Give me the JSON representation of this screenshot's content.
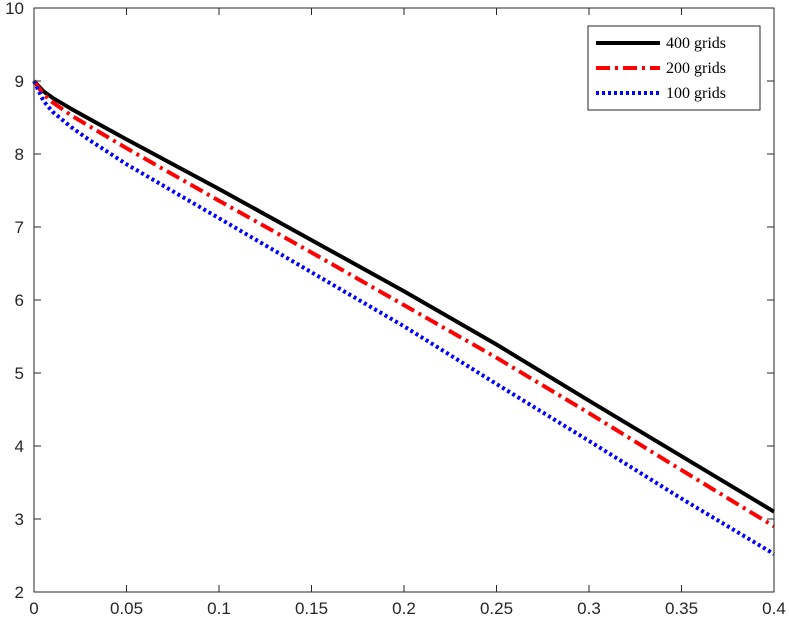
{
  "chart_data": {
    "type": "line",
    "title": "",
    "xlabel": "",
    "ylabel": "",
    "xlim": [
      0,
      0.4
    ],
    "ylim": [
      2,
      10
    ],
    "xticks": [
      0,
      0.05,
      0.1,
      0.15,
      0.2,
      0.25,
      0.3,
      0.35,
      0.4
    ],
    "xtick_labels": [
      "0",
      "0.05",
      "0.1",
      "0.15",
      "0.2",
      "0.25",
      "0.3",
      "0.35",
      "0.4"
    ],
    "yticks": [
      2,
      3,
      4,
      5,
      6,
      7,
      8,
      9,
      10
    ],
    "ytick_labels": [
      "2",
      "3",
      "4",
      "5",
      "6",
      "7",
      "8",
      "9",
      "10"
    ],
    "grid": false,
    "legend_position": "top-right",
    "series": [
      {
        "name": "400 grids",
        "color": "#000000",
        "style": "solid",
        "x": [
          0,
          0.005,
          0.01,
          0.02,
          0.03,
          0.05,
          0.1,
          0.15,
          0.2,
          0.25,
          0.3,
          0.35,
          0.4
        ],
        "y": [
          9.0,
          8.86,
          8.77,
          8.62,
          8.48,
          8.2,
          7.52,
          6.82,
          6.12,
          5.39,
          4.62,
          3.86,
          3.1
        ]
      },
      {
        "name": "200 grids",
        "color": "#ff0000",
        "style": "dashdot",
        "x": [
          0,
          0.005,
          0.01,
          0.02,
          0.03,
          0.05,
          0.1,
          0.15,
          0.2,
          0.25,
          0.3,
          0.35,
          0.4
        ],
        "y": [
          9.0,
          8.82,
          8.71,
          8.53,
          8.38,
          8.08,
          7.36,
          6.65,
          5.93,
          5.21,
          4.45,
          3.67,
          2.9
        ]
      },
      {
        "name": "100 grids",
        "color": "#0000ff",
        "style": "dotted",
        "x": [
          0,
          0.005,
          0.01,
          0.02,
          0.03,
          0.05,
          0.1,
          0.15,
          0.2,
          0.25,
          0.3,
          0.35,
          0.4
        ],
        "y": [
          9.0,
          8.73,
          8.58,
          8.37,
          8.19,
          7.86,
          7.12,
          6.38,
          5.64,
          4.85,
          4.07,
          3.28,
          2.52
        ]
      }
    ]
  }
}
